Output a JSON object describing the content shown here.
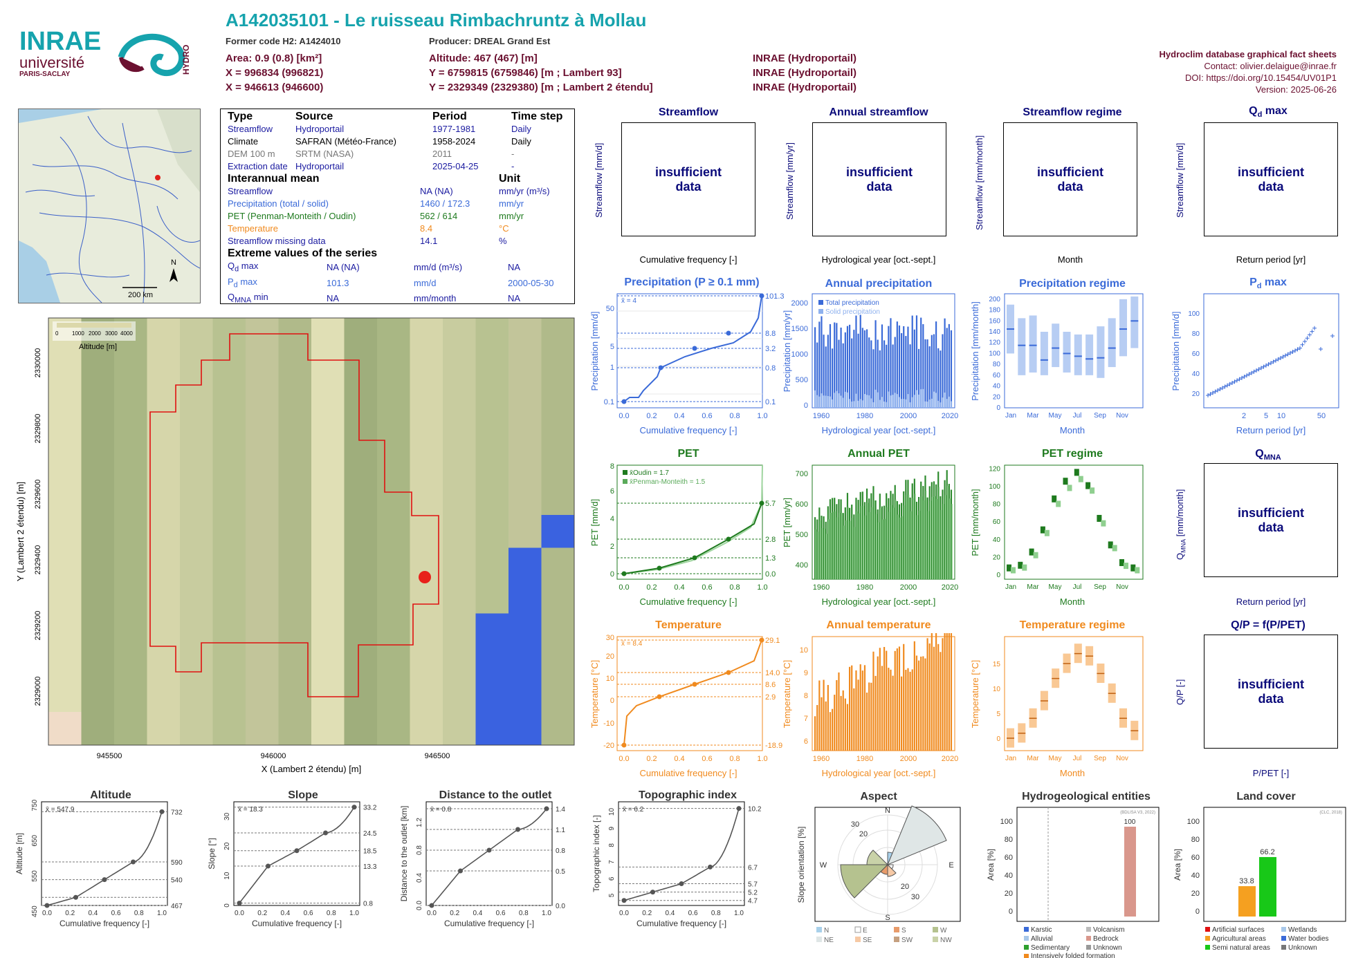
{
  "header": {
    "title": "A142035101 - Le ruisseau Rimbachruntz à Mollau",
    "former_code": "Former code H2: A1424010",
    "producer": "Producer: DREAL Grand Est",
    "area": "Area: 0.9 (0.8) [km²]",
    "altitude": "Altitude: 467 (467) [m]",
    "x93": "X = 996834 (996821)",
    "y93": "Y = 6759815 (6759846) [m ; Lambert 93]",
    "x2": "X = 946613 (946600)",
    "y2": "Y = 2329349 (2329380) [m ; Lambert 2 étendu]",
    "src1": "INRAE (Hydroportail)",
    "src2": "INRAE (Hydroportail)",
    "src3": "INRAE (Hydroportail)",
    "right1": "Hydroclim database graphical fact sheets",
    "right2": "Contact: olivier.delaigue@inrae.fr",
    "right3": "DOI: https://doi.org/10.15454/UV01P1",
    "right4": "Version: 2025-06-26"
  },
  "logos": {
    "inrae": "INRAE",
    "univ": "université",
    "paris": "PARIS-SACLAY",
    "hydro": "HYDRO"
  },
  "map_scale": "200 km",
  "north": "N",
  "info": {
    "h": [
      "Type",
      "Source",
      "Period",
      "Time step"
    ],
    "rows": [
      [
        "Streamflow",
        "Hydroportail",
        "1977-1981",
        "Daily"
      ],
      [
        "Climate",
        "SAFRAN (Météo-France)",
        "1958-2024",
        "Daily"
      ],
      [
        "DEM 100 m",
        "SRTM (NASA)",
        "2011",
        "-"
      ],
      [
        "Extraction date",
        "Hydroportail",
        "2025-04-25",
        "-"
      ]
    ],
    "mean_h": "Interannual mean",
    "unit_h": "Unit",
    "mean": [
      [
        "Streamflow",
        "NA (NA)",
        "mm/yr (m³/s)"
      ],
      [
        "Precipitation (total / solid)",
        "1460 / 172.3",
        "mm/yr"
      ],
      [
        "PET (Penman-Monteith / Oudin)",
        "562 / 614",
        "mm/yr"
      ],
      [
        "Temperature",
        "8.4",
        "°C"
      ],
      [
        "Streamflow missing data",
        "14.1",
        "%"
      ]
    ],
    "ext_h": "Extreme values of the series",
    "ext": [
      [
        "Q",
        "d",
        " max",
        "NA (NA)",
        "mm/d (m³/s)",
        "NA"
      ],
      [
        "P",
        "d",
        " max",
        "101.3",
        "mm/d",
        "2000-05-30"
      ],
      [
        "Q",
        "MNA",
        " min",
        "NA",
        "mm/month",
        "NA"
      ]
    ]
  },
  "dem": {
    "legend_ticks": [
      "0",
      "1000",
      "2000",
      "3000",
      "4000"
    ],
    "legend_title": "Altitude [m]",
    "xticks": [
      "945500",
      "946000",
      "946500"
    ],
    "yticks": [
      "2330000",
      "2329800",
      "2329600",
      "2329400",
      "2329200",
      "2329000"
    ],
    "xlabel": "X (Lambert 2 étendu) [m]",
    "ylabel": "Y (Lambert 2 étendu) [m]"
  },
  "insufficient": "insufficient data",
  "panels": {
    "streamflow": {
      "title": "Streamflow",
      "ylabel": "Streamflow [mm/d]",
      "xlabel": "Cumulative frequency [-]"
    },
    "annual_streamflow": {
      "title": "Annual streamflow",
      "ylabel": "Streamflow [mm/yr]",
      "xlabel": "Hydrological year [oct.-sept.]"
    },
    "streamflow_regime": {
      "title": "Streamflow regime",
      "ylabel": "Streamflow [mm/month]",
      "xlabel": "Month"
    },
    "qd_max": {
      "title": "Q",
      "sub": "d",
      "title2": " max",
      "ylabel": "Streamflow [mm/d]",
      "xlabel": "Return period [yr]"
    },
    "qmna": {
      "title": "Q",
      "sub": "MNA",
      "ylabel": "Q",
      "ysub": "MNA",
      "ylabel2": " [mm/month]",
      "xlabel": "Return period [yr]"
    },
    "qp": {
      "title": "Q/P = f(P/PET)",
      "ylabel": "Q/P [-]",
      "xlabel": "P/PET [-]"
    },
    "precip": {
      "title": "Precipitation (P ≥ 0.1 mm)",
      "ylabel": "Precipitation [mm/d]",
      "xlabel": "Cumulative frequency [-]",
      "mean": "x̄ = 4",
      "right": [
        "101.3",
        "8.8",
        "3.2",
        "0.8",
        "0.1"
      ]
    },
    "annual_precip": {
      "title": "Annual precipitation",
      "ylabel": "Precipitation [mm/yr]",
      "xlabel": "Hydrological year [oct.-sept.]",
      "leg1": "Total precipitation",
      "leg2": "Solid precipitation"
    },
    "precip_regime": {
      "title": "Precipitation regime",
      "ylabel": "Precipitation [mm/month]",
      "xlabel": "Month"
    },
    "pd_max": {
      "title": "P",
      "sub": "d",
      "title2": " max",
      "ylabel": "Precipitation [mm/d]",
      "xlabel": "Return period [yr]"
    },
    "pet": {
      "title": "PET",
      "ylabel": "PET [mm/d]",
      "xlabel": "Cumulative frequency [-]",
      "leg1": "x̄Oudin = 1.7",
      "leg2": "x̄Penman-Monteith = 1.5",
      "right": [
        "5.7",
        "2.8",
        "1.3",
        "0.0"
      ]
    },
    "annual_pet": {
      "title": "Annual PET",
      "ylabel": "PET [mm/yr]",
      "xlabel": "Hydrological year [oct.-sept.]"
    },
    "pet_regime": {
      "title": "PET regime",
      "ylabel": "PET [mm/month]",
      "xlabel": "Month"
    },
    "temp": {
      "title": "Temperature",
      "ylabel": "Temperature [°C]",
      "xlabel": "Cumulative frequency [-]",
      "mean": "x̄ = 8.4",
      "right": [
        "29.1",
        "14.0",
        "8.6",
        "2.9",
        "-18.9"
      ]
    },
    "annual_temp": {
      "title": "Annual temperature",
      "ylabel": "Temperature [°C]",
      "xlabel": "Hydrological year [oct.-sept.]"
    },
    "temp_regime": {
      "title": "Temperature regime",
      "ylabel": "Temperature [°C]",
      "xlabel": "Month"
    },
    "altitude": {
      "title": "Altitude",
      "ylabel": "Altitude [m]",
      "xlabel": "Cumulative frequency [-]",
      "mean": "x̄ = 547.9",
      "right": [
        "732",
        "590",
        "540",
        "467"
      ]
    },
    "slope": {
      "title": "Slope",
      "ylabel": "Slope [°]",
      "xlabel": "Cumulative frequency [-]",
      "mean": "x̄ = 18.3",
      "right": [
        "33.2",
        "24.5",
        "18.5",
        "13.3",
        "0.8"
      ]
    },
    "dist": {
      "title": "Distance to the outlet",
      "ylabel": "Distance to the outlet [km]",
      "xlabel": "Cumulative frequency [-]",
      "mean": "x̄ = 0.8",
      "right": [
        "1.4",
        "1.1",
        "0.8",
        "0.5",
        "0.0"
      ]
    },
    "topo": {
      "title": "Topographic index",
      "ylabel": "Topographic index [-]",
      "xlabel": "Cumulative frequency [-]",
      "mean": "x̄ = 6.2",
      "right": [
        "10.2",
        "6.7",
        "5.7",
        "5.2",
        "4.7"
      ]
    },
    "aspect": {
      "title": "Aspect",
      "ylabel": "Slope orientation [%]",
      "dirs": [
        "N",
        "E",
        "S",
        "W"
      ],
      "rings": [
        "20",
        "30",
        "20",
        "30"
      ],
      "legend": [
        "N",
        "E",
        "S",
        "W",
        "NE",
        "SE",
        "SW",
        "NW"
      ]
    },
    "hydrogeo": {
      "title": "Hydrogeological entities",
      "ylabel": "Area [%]",
      "note": "(BDLISA V3, 2022)",
      "value_label": "100",
      "legend": [
        "Karstic",
        "Volcanism",
        "Alluvial",
        "Bedrock",
        "Sedimentary",
        "Unknown",
        "Intensively folded formation"
      ]
    },
    "landcover": {
      "title": "Land cover",
      "ylabel": "Area [%]",
      "note": "(CLC, 2018)",
      "values": [
        "33.8",
        "66.2"
      ],
      "legend": [
        "Artificial surfaces",
        "Wetlands",
        "Agricultural areas",
        "Water bodies",
        "Semi natural areas",
        "Unknown"
      ]
    }
  },
  "chart_data": [
    {
      "type": "line",
      "title": "Precipitation (P ≥ 0.1 mm)",
      "xlabel": "Cumulative frequency [-]",
      "ylabel": "Precipitation [mm/d]",
      "x": [
        0,
        0.25,
        0.5,
        0.75,
        1.0
      ],
      "y": [
        0.1,
        0.8,
        3.2,
        8.8,
        101.3
      ],
      "xticks": [
        "0.0",
        "0.2",
        "0.4",
        "0.6",
        "0.8",
        "1.0"
      ],
      "yticks": [
        "0.1",
        "1",
        "5",
        "50"
      ],
      "log_y": true
    },
    {
      "type": "bar",
      "title": "Annual precipitation",
      "xticks": [
        "1960",
        "1980",
        "2000",
        "2020"
      ],
      "yticks": [
        "0",
        "500",
        "1000",
        "1500",
        "2000"
      ],
      "ylim": [
        0,
        2200
      ]
    },
    {
      "type": "box",
      "title": "Precipitation regime",
      "categories": [
        "Jan",
        "Feb",
        "Mar",
        "Apr",
        "May",
        "Jun",
        "Jul",
        "Aug",
        "Sep",
        "Oct",
        "Nov",
        "Dec"
      ],
      "median": [
        145,
        115,
        115,
        88,
        110,
        100,
        95,
        90,
        92,
        110,
        145,
        160
      ],
      "q_low": [
        100,
        60,
        65,
        60,
        75,
        65,
        60,
        60,
        55,
        75,
        95,
        110
      ],
      "q_high": [
        190,
        165,
        170,
        140,
        155,
        140,
        135,
        135,
        150,
        165,
        200,
        205
      ],
      "yticks": [
        "0",
        "20",
        "40",
        "60",
        "80",
        "100",
        "120",
        "140",
        "160",
        "180",
        "200"
      ]
    },
    {
      "type": "scatter",
      "title": "Pd max",
      "xticks": [
        "2",
        "5",
        "10",
        "50"
      ],
      "yticks": [
        "20",
        "40",
        "60",
        "80",
        "100"
      ]
    },
    {
      "type": "line",
      "title": "PET",
      "x": [
        0,
        0.25,
        0.5,
        0.75,
        1.0
      ],
      "y": [
        0.0,
        0.5,
        1.3,
        2.8,
        5.7
      ],
      "yticks": [
        "0",
        "2",
        "4",
        "6",
        "8"
      ],
      "xticks": [
        "0.0",
        "0.2",
        "0.4",
        "0.6",
        "0.8",
        "1.0"
      ]
    },
    {
      "type": "bar",
      "title": "Annual PET",
      "xticks": [
        "1960",
        "1980",
        "2000",
        "2020"
      ],
      "yticks": [
        "400",
        "500",
        "600",
        "700"
      ]
    },
    {
      "type": "box",
      "title": "PET regime",
      "categories": [
        "Jan",
        "Feb",
        "Mar",
        "Apr",
        "May",
        "Jun",
        "Jul",
        "Aug",
        "Sep",
        "Oct",
        "Nov",
        "Dec"
      ],
      "oudin": [
        7,
        10,
        25,
        50,
        85,
        105,
        115,
        100,
        63,
        33,
        13,
        7
      ],
      "pm": [
        5,
        8,
        22,
        47,
        80,
        98,
        108,
        95,
        58,
        30,
        10,
        5
      ],
      "yticks": [
        "0",
        "20",
        "40",
        "60",
        "80",
        "100",
        "120"
      ]
    },
    {
      "type": "line",
      "title": "Temperature",
      "x": [
        0,
        0.25,
        0.5,
        0.75,
        1.0
      ],
      "y": [
        -18.9,
        2.9,
        8.6,
        14.0,
        29.1
      ],
      "yticks": [
        "-20",
        "-10",
        "0",
        "10",
        "20",
        "30"
      ],
      "xticks": [
        "0.0",
        "0.2",
        "0.4",
        "0.6",
        "0.8",
        "1.0"
      ]
    },
    {
      "type": "bar",
      "title": "Annual temperature",
      "xticks": [
        "1960",
        "1980",
        "2000",
        "2020"
      ],
      "yticks": [
        "6",
        "7",
        "8",
        "9",
        "10"
      ]
    },
    {
      "type": "box",
      "title": "Temperature regime",
      "categories": [
        "Jan",
        "Feb",
        "Mar",
        "Apr",
        "May",
        "Jun",
        "Jul",
        "Aug",
        "Sep",
        "Oct",
        "Nov",
        "Dec"
      ],
      "median": [
        0,
        1,
        4,
        7.5,
        12,
        15,
        17,
        16.5,
        13,
        9,
        4,
        1.5
      ],
      "yticks": [
        "0",
        "5",
        "10",
        "15"
      ]
    },
    {
      "type": "line",
      "title": "Altitude",
      "x": [
        0,
        0.25,
        0.5,
        0.75,
        1.0
      ],
      "y": [
        467,
        490,
        540,
        590,
        732
      ],
      "yticks": [
        "450",
        "550",
        "650",
        "750"
      ]
    },
    {
      "type": "line",
      "title": "Slope",
      "x": [
        0,
        0.25,
        0.5,
        0.75,
        1.0
      ],
      "y": [
        0.8,
        13.3,
        18.5,
        24.5,
        33.2
      ],
      "yticks": [
        "0",
        "10",
        "20",
        "30"
      ]
    },
    {
      "type": "line",
      "title": "Distance to the outlet",
      "x": [
        0,
        0.25,
        0.5,
        0.75,
        1.0
      ],
      "y": [
        0.0,
        0.5,
        0.8,
        1.1,
        1.4
      ],
      "yticks": [
        "0.0",
        "0.4",
        "0.8",
        "1.2"
      ]
    },
    {
      "type": "line",
      "title": "Topographic index",
      "x": [
        0,
        0.25,
        0.5,
        0.75,
        1.0
      ],
      "y": [
        4.7,
        5.2,
        5.7,
        6.7,
        10.2
      ],
      "yticks": [
        "5",
        "6",
        "7",
        "8",
        "9",
        "10"
      ]
    },
    {
      "type": "bar",
      "title": "Hydrogeological entities",
      "categories": [
        "Bedrock"
      ],
      "values": [
        100
      ],
      "yticks": [
        "0",
        "20",
        "40",
        "60",
        "80",
        "100"
      ]
    },
    {
      "type": "bar",
      "title": "Land cover",
      "categories": [
        "Agricultural areas",
        "Semi natural areas"
      ],
      "values": [
        33.8,
        66.2
      ],
      "yticks": [
        "0",
        "20",
        "40",
        "60",
        "80",
        "100"
      ]
    }
  ],
  "colors": {
    "precip": "#3a6ad8",
    "pet": "#1e7a1e",
    "temp": "#f08a1e",
    "title_blue": "#16a3ad",
    "navy": "#0a0a7a"
  }
}
